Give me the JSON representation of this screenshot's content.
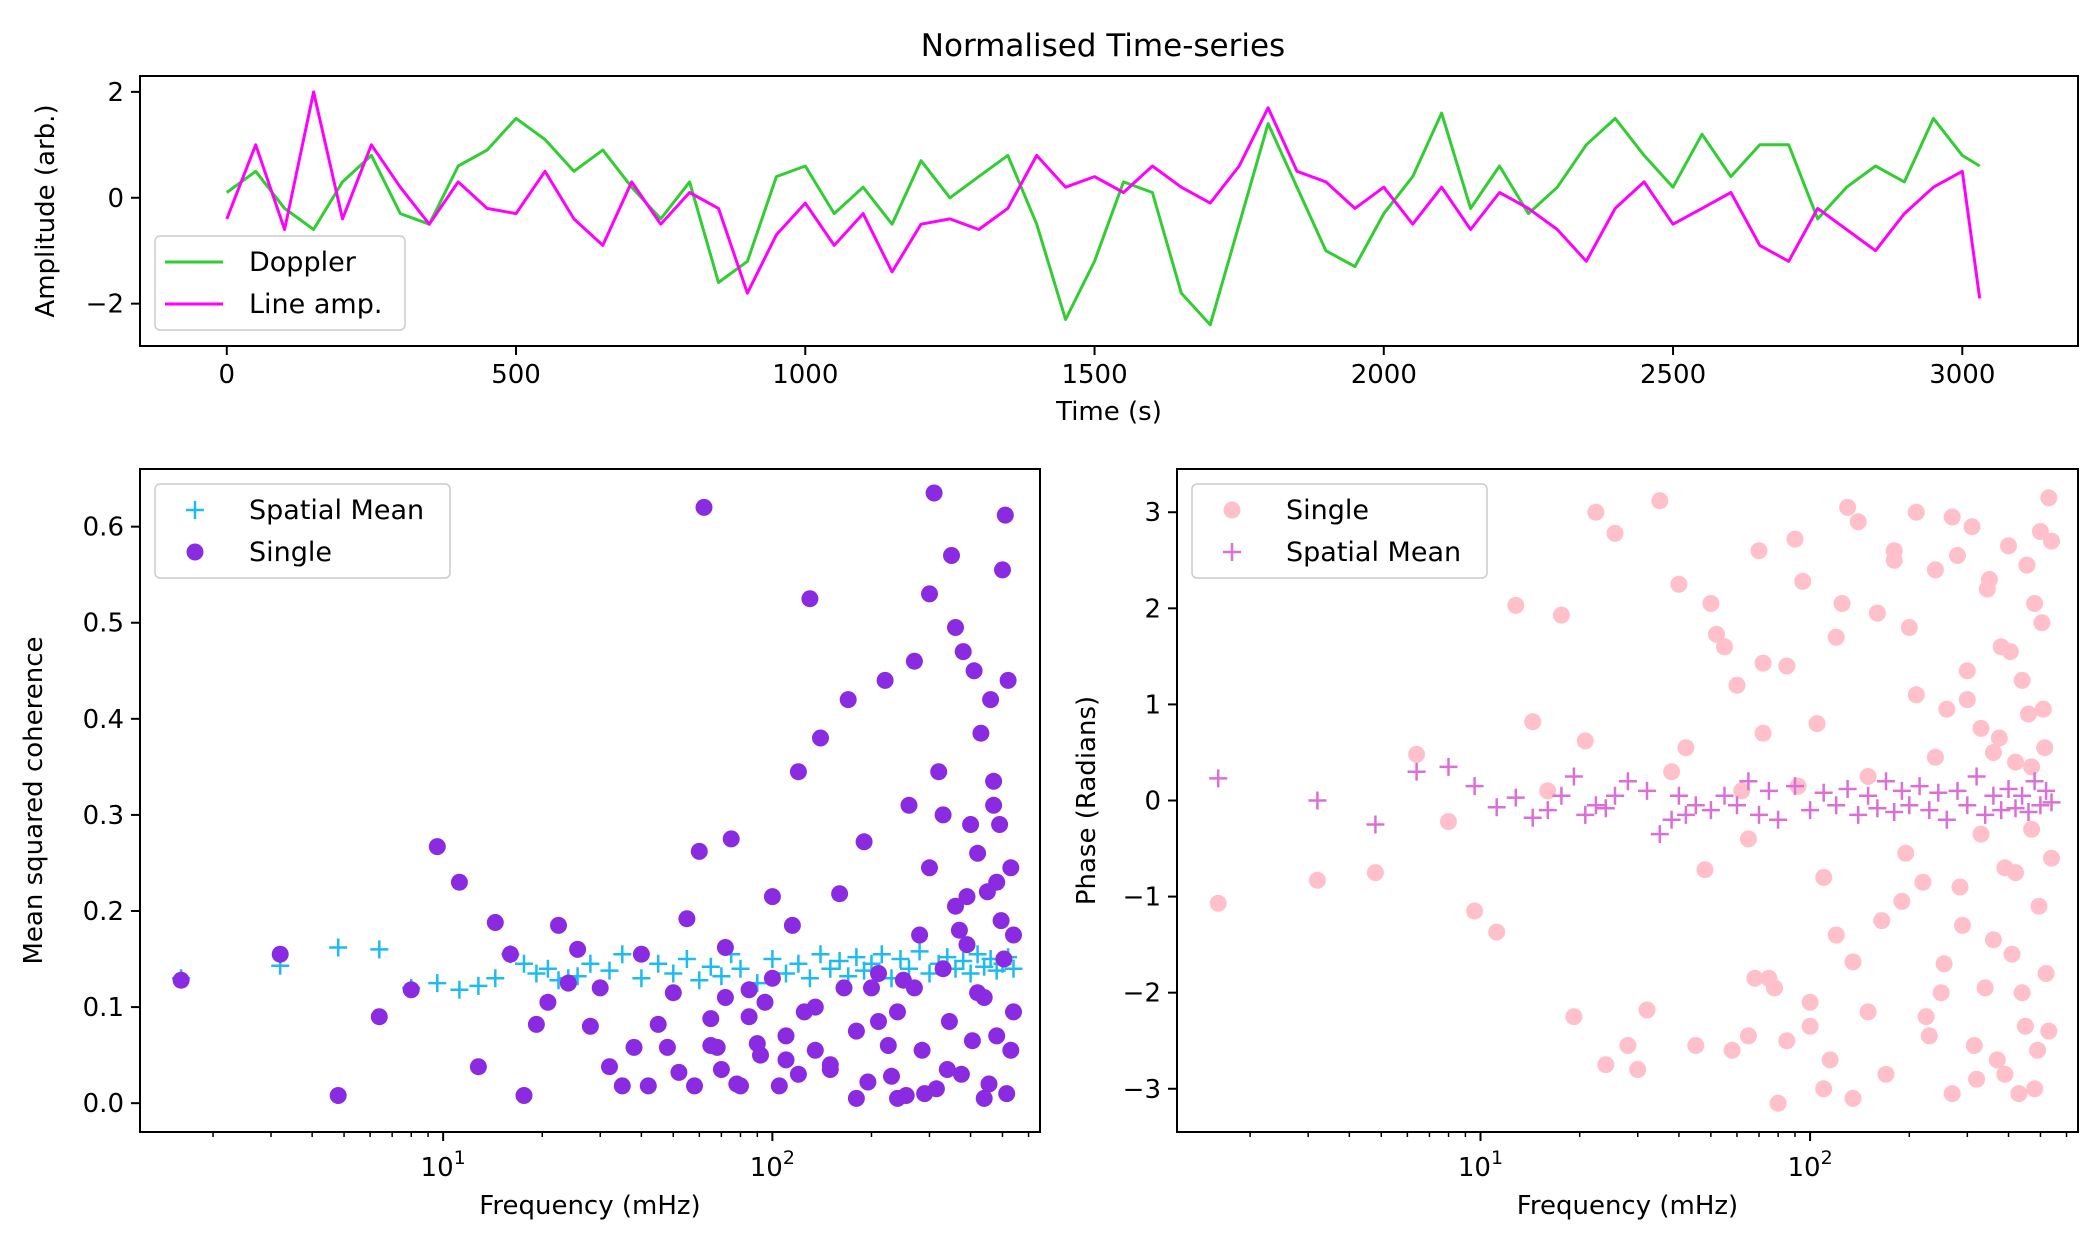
{
  "chart_data": [
    {
      "type": "line",
      "title": "Normalised Time-series",
      "xlabel": "Time (s)",
      "ylabel": "Amplitude (arb.)",
      "xlim": [
        -150,
        3200
      ],
      "ylim": [
        -2.8,
        2.3
      ],
      "xticks": [
        0,
        500,
        1000,
        1500,
        2000,
        2500,
        3000
      ],
      "yticks": [
        -2,
        0,
        2
      ],
      "legend": "lower-left",
      "grid": false,
      "x": [
        0,
        50,
        100,
        150,
        200,
        250,
        300,
        350,
        400,
        450,
        500,
        550,
        600,
        650,
        700,
        750,
        800,
        850,
        900,
        950,
        1000,
        1050,
        1100,
        1150,
        1200,
        1250,
        1300,
        1350,
        1400,
        1450,
        1500,
        1550,
        1600,
        1650,
        1700,
        1750,
        1800,
        1850,
        1900,
        1950,
        2000,
        2050,
        2100,
        2150,
        2200,
        2250,
        2300,
        2350,
        2400,
        2450,
        2500,
        2550,
        2600,
        2650,
        2700,
        2750,
        2800,
        2850,
        2900,
        2950,
        3000,
        3030
      ],
      "series": [
        {
          "name": "Doppler",
          "color": "#32cd32",
          "values": [
            0.1,
            0.5,
            -0.2,
            -0.6,
            0.3,
            0.8,
            -0.3,
            -0.5,
            0.6,
            0.9,
            1.5,
            1.1,
            0.5,
            0.9,
            0.2,
            -0.4,
            0.3,
            -1.6,
            -1.2,
            0.4,
            0.6,
            -0.3,
            0.2,
            -0.5,
            0.7,
            0.0,
            0.4,
            0.8,
            -0.5,
            -2.3,
            -1.2,
            0.3,
            0.1,
            -1.8,
            -2.4,
            -0.5,
            1.4,
            0.2,
            -1.0,
            -1.3,
            -0.3,
            0.4,
            1.6,
            -0.2,
            0.6,
            -0.3,
            0.2,
            1.0,
            1.5,
            0.8,
            0.2,
            1.2,
            0.4,
            1.0,
            1.0,
            -0.4,
            0.2,
            0.6,
            0.3,
            1.5,
            0.8,
            0.6
          ]
        },
        {
          "name": "Line amp.",
          "color": "#ff00ff",
          "values": [
            -0.4,
            1.0,
            -0.6,
            2.0,
            -0.4,
            1.0,
            0.2,
            -0.5,
            0.3,
            -0.2,
            -0.3,
            0.5,
            -0.4,
            -0.9,
            0.3,
            -0.5,
            0.1,
            -0.2,
            -1.8,
            -0.7,
            -0.1,
            -0.9,
            -0.3,
            -1.4,
            -0.5,
            -0.4,
            -0.6,
            -0.2,
            0.8,
            0.2,
            0.4,
            0.1,
            0.6,
            0.2,
            -0.1,
            0.6,
            1.7,
            0.5,
            0.3,
            -0.2,
            0.2,
            -0.5,
            0.2,
            -0.6,
            0.1,
            -0.2,
            -0.6,
            -1.2,
            -0.2,
            0.3,
            -0.5,
            -0.2,
            0.1,
            -0.9,
            -1.2,
            -0.2,
            -0.6,
            -1.0,
            -0.3,
            0.2,
            0.5,
            -1.9
          ]
        }
      ]
    },
    {
      "type": "scatter",
      "title": "",
      "xlabel": "Frequency (mHz)",
      "ylabel": "Mean squared coherence",
      "xscale": "log",
      "xlim": [
        1.2,
        650
      ],
      "ylim": [
        -0.03,
        0.66
      ],
      "xticks": [
        10,
        100
      ],
      "xtick_labels": [
        "10^1",
        "10^2"
      ],
      "yticks": [
        0.0,
        0.1,
        0.2,
        0.3,
        0.4,
        0.5,
        0.6
      ],
      "legend": "upper-left",
      "grid": false,
      "series": [
        {
          "name": "Spatial Mean",
          "marker": "plus",
          "color": "#1ebbf0",
          "x": [
            1.6,
            3.2,
            4.8,
            6.4,
            8,
            9.6,
            11.2,
            12.8,
            14.4,
            16,
            17.6,
            19.2,
            20.8,
            22.4,
            24,
            25.6,
            28,
            32,
            35,
            40,
            45,
            50,
            55,
            60,
            65,
            70,
            75,
            80,
            90,
            100,
            110,
            120,
            130,
            140,
            150,
            160,
            170,
            180,
            190,
            200,
            215,
            230,
            245,
            260,
            280,
            300,
            320,
            340,
            360,
            380,
            400,
            420,
            440,
            460,
            480,
            500,
            520,
            540
          ],
          "y": [
            0.13,
            0.143,
            0.162,
            0.16,
            0.12,
            0.125,
            0.118,
            0.122,
            0.13,
            0.155,
            0.145,
            0.135,
            0.14,
            0.128,
            0.13,
            0.132,
            0.145,
            0.138,
            0.155,
            0.13,
            0.145,
            0.135,
            0.15,
            0.128,
            0.142,
            0.132,
            0.155,
            0.14,
            0.125,
            0.15,
            0.135,
            0.145,
            0.13,
            0.155,
            0.14,
            0.148,
            0.132,
            0.152,
            0.138,
            0.145,
            0.155,
            0.13,
            0.15,
            0.14,
            0.158,
            0.135,
            0.145,
            0.152,
            0.14,
            0.148,
            0.135,
            0.155,
            0.142,
            0.15,
            0.138,
            0.145,
            0.152,
            0.14
          ]
        },
        {
          "name": "Single",
          "marker": "circle",
          "color": "#8a2be2",
          "x": [
            1.6,
            3.2,
            4.8,
            6.4,
            8,
            9.6,
            11.2,
            12.8,
            14.4,
            16,
            17.6,
            19.2,
            20.8,
            22.4,
            24,
            25.6,
            28,
            30,
            32,
            35,
            38,
            40,
            42,
            45,
            48,
            50,
            52,
            55,
            58,
            60,
            62,
            65,
            68,
            70,
            72,
            75,
            80,
            85,
            90,
            95,
            100,
            105,
            110,
            115,
            120,
            125,
            130,
            135,
            140,
            150,
            160,
            170,
            180,
            190,
            200,
            210,
            220,
            230,
            240,
            250,
            260,
            270,
            280,
            290,
            300,
            310,
            320,
            330,
            340,
            350,
            360,
            370,
            380,
            390,
            400,
            410,
            420,
            430,
            440,
            450,
            460,
            470,
            480,
            490,
            500,
            510,
            520,
            530,
            540,
            540,
            530,
            515,
            505,
            495,
            480,
            470,
            455,
            440,
            420,
            405,
            390,
            375,
            360,
            345,
            330,
            315,
            300,
            285,
            270,
            255,
            240,
            225,
            210,
            195,
            180,
            165,
            150,
            135,
            120,
            110,
            100,
            92,
            85,
            78,
            72,
            65
          ],
          "y": [
            0.128,
            0.155,
            0.008,
            0.09,
            0.118,
            0.267,
            0.23,
            0.038,
            0.188,
            0.155,
            0.008,
            0.082,
            0.105,
            0.185,
            0.125,
            0.16,
            0.08,
            0.12,
            0.038,
            0.018,
            0.058,
            0.155,
            0.018,
            0.082,
            0.058,
            0.115,
            0.032,
            0.192,
            0.018,
            0.262,
            0.62,
            0.088,
            0.058,
            0.035,
            0.162,
            0.275,
            0.018,
            0.118,
            0.062,
            0.105,
            0.215,
            0.018,
            0.045,
            0.185,
            0.345,
            0.095,
            0.525,
            0.055,
            0.38,
            0.035,
            0.218,
            0.42,
            0.005,
            0.272,
            0.12,
            0.085,
            0.44,
            0.028,
            0.005,
            0.128,
            0.31,
            0.46,
            0.175,
            0.01,
            0.53,
            0.635,
            0.345,
            0.3,
            0.035,
            0.57,
            0.495,
            0.18,
            0.47,
            0.215,
            0.29,
            0.45,
            0.115,
            0.385,
            0.005,
            0.22,
            0.42,
            0.335,
            0.07,
            0.29,
            0.555,
            0.612,
            0.44,
            0.245,
            0.175,
            0.095,
            0.055,
            0.01,
            0.15,
            0.19,
            0.23,
            0.31,
            0.02,
            0.11,
            0.26,
            0.065,
            0.165,
            0.03,
            0.205,
            0.085,
            0.14,
            0.015,
            0.245,
            0.055,
            0.12,
            0.008,
            0.095,
            0.06,
            0.135,
            0.022,
            0.075,
            0.12,
            0.04,
            0.1,
            0.03,
            0.07,
            0.13,
            0.05,
            0.09,
            0.02,
            0.11,
            0.06
          ]
        }
      ]
    },
    {
      "type": "scatter",
      "title": "",
      "xlabel": "Frequency (mHz)",
      "ylabel": "Phase (Radians)",
      "xscale": "log",
      "xlim": [
        1.2,
        650
      ],
      "ylim": [
        -3.45,
        3.45
      ],
      "xticks": [
        10,
        100
      ],
      "xtick_labels": [
        "10^1",
        "10^2"
      ],
      "yticks": [
        -3,
        -2,
        -1,
        0,
        1,
        2,
        3
      ],
      "legend": "upper-left",
      "grid": false,
      "series": [
        {
          "name": "Single",
          "marker": "circle",
          "color": "#ffc0cb",
          "x": [
            1.6,
            3.2,
            4.8,
            6.4,
            8,
            9.6,
            11.2,
            12.8,
            14.4,
            16,
            17.6,
            19.2,
            20.8,
            22.4,
            24,
            25.6,
            28,
            30,
            32,
            35,
            38,
            40,
            42,
            45,
            48,
            50,
            52,
            55,
            58,
            60,
            62,
            65,
            68,
            70,
            72,
            75,
            80,
            85,
            90,
            95,
            100,
            105,
            110,
            115,
            120,
            125,
            130,
            135,
            140,
            150,
            160,
            170,
            180,
            190,
            200,
            210,
            220,
            230,
            240,
            250,
            260,
            270,
            280,
            290,
            300,
            310,
            320,
            330,
            340,
            350,
            360,
            370,
            380,
            390,
            400,
            410,
            420,
            430,
            440,
            450,
            460,
            470,
            480,
            490,
            500,
            510,
            520,
            530,
            540,
            540,
            530,
            515,
            505,
            495,
            480,
            470,
            455,
            440,
            420,
            405,
            390,
            375,
            360,
            345,
            330,
            315,
            300,
            285,
            270,
            255,
            240,
            225,
            210,
            195,
            180,
            165,
            150,
            135,
            120,
            110,
            100,
            92,
            85,
            78,
            72,
            65
          ],
          "y": [
            -1.07,
            -0.83,
            -0.75,
            0.48,
            -0.22,
            -1.15,
            -1.37,
            2.03,
            0.82,
            0.1,
            1.93,
            -2.25,
            0.62,
            3.0,
            -2.75,
            2.78,
            -2.55,
            -2.8,
            -2.18,
            3.12,
            0.3,
            2.25,
            0.55,
            -2.55,
            -0.72,
            2.05,
            1.73,
            1.6,
            -2.6,
            1.2,
            0.1,
            -2.45,
            -1.85,
            2.6,
            1.43,
            -1.85,
            -3.15,
            -2.5,
            2.72,
            2.28,
            -2.35,
            0.8,
            -3.0,
            -2.7,
            -1.4,
            2.05,
            3.05,
            -1.68,
            2.9,
            -2.2,
            1.95,
            -2.85,
            2.6,
            -1.05,
            1.8,
            3.0,
            -0.85,
            -2.45,
            2.4,
            -2.0,
            0.95,
            -3.05,
            2.55,
            -1.3,
            1.05,
            2.85,
            -2.9,
            0.75,
            -1.95,
            2.3,
            0.5,
            -2.7,
            1.6,
            -0.7,
            2.65,
            -1.6,
            0.4,
            -3.05,
            1.25,
            -2.35,
            0.9,
            -0.3,
            2.05,
            -2.6,
            2.8,
            0.95,
            -1.8,
            3.15,
            -0.6,
            2.7,
            -2.4,
            0.55,
            1.85,
            -1.1,
            -3.0,
            0.35,
            2.45,
            -2.0,
            -0.75,
            1.55,
            -2.85,
            0.65,
            -1.45,
            2.2,
            -0.35,
            -2.55,
            1.35,
            -0.9,
            2.95,
            -1.7,
            0.45,
            -2.25,
            1.1,
            -0.55,
            2.5,
            -1.25,
            0.25,
            -3.1,
            1.7,
            -0.8,
            -2.1,
            0.15,
            1.4,
            -1.95,
            0.7,
            -0.4
          ]
        },
        {
          "name": "Spatial Mean",
          "marker": "plus",
          "color": "#da70d6",
          "x": [
            1.6,
            3.2,
            4.8,
            6.4,
            8,
            9.6,
            11.2,
            12.8,
            14.4,
            16,
            17.6,
            19.2,
            20.8,
            22.4,
            24,
            25.6,
            28,
            32,
            35,
            38,
            40,
            42,
            45,
            50,
            55,
            60,
            65,
            70,
            75,
            80,
            90,
            100,
            110,
            120,
            130,
            140,
            150,
            160,
            170,
            180,
            190,
            200,
            215,
            230,
            245,
            260,
            280,
            300,
            320,
            340,
            360,
            380,
            400,
            420,
            440,
            460,
            480,
            500,
            520,
            540
          ],
          "y": [
            0.23,
            0.0,
            -0.25,
            0.3,
            0.35,
            0.15,
            -0.07,
            0.03,
            -0.18,
            -0.1,
            0.05,
            0.25,
            -0.15,
            -0.05,
            -0.08,
            0.05,
            0.2,
            0.1,
            -0.35,
            -0.2,
            0.05,
            -0.15,
            -0.05,
            -0.1,
            0.05,
            -0.05,
            0.2,
            -0.15,
            0.1,
            -0.2,
            0.15,
            -0.1,
            0.08,
            -0.05,
            0.12,
            -0.15,
            0.05,
            -0.08,
            0.2,
            -0.12,
            0.1,
            -0.05,
            0.15,
            -0.1,
            0.08,
            -0.2,
            0.1,
            -0.05,
            0.25,
            -0.15,
            0.05,
            -0.1,
            0.12,
            -0.08,
            0.05,
            -0.12,
            0.2,
            -0.05,
            0.1,
            -0.02
          ]
        }
      ]
    }
  ]
}
